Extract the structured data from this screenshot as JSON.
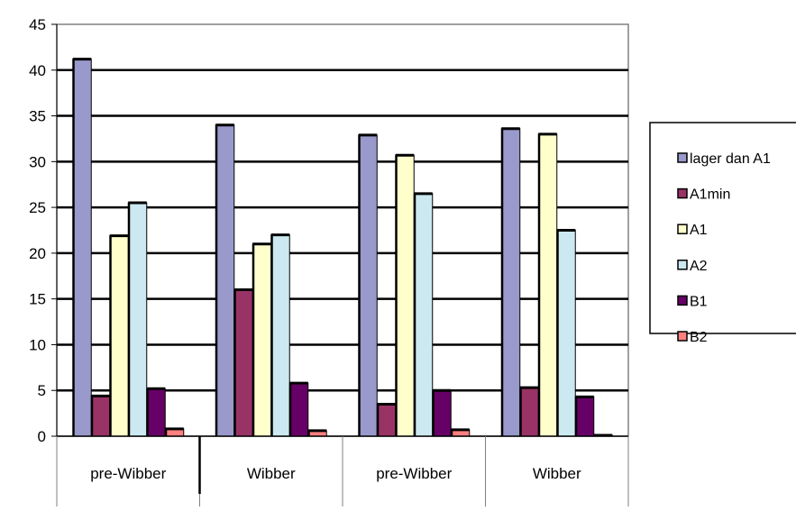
{
  "chart_data": {
    "type": "bar",
    "title": "",
    "xlabel": "",
    "ylabel": "",
    "ylim": [
      0,
      45
    ],
    "yticks": [
      0,
      5,
      10,
      15,
      20,
      25,
      30,
      35,
      40,
      45
    ],
    "grid": true,
    "legend_position": "right",
    "categories": [
      "pre-Wibber",
      "Wibber",
      "pre-Wibber",
      "Wibber"
    ],
    "series": [
      {
        "name": "lager dan A1",
        "color": "#9999cc",
        "values": [
          41.2,
          34.0,
          32.9,
          33.6
        ]
      },
      {
        "name": "A1min",
        "color": "#993366",
        "values": [
          4.4,
          16.0,
          3.5,
          5.3
        ]
      },
      {
        "name": "A1",
        "color": "#ffffcc",
        "values": [
          21.9,
          21.0,
          30.7,
          33.0
        ]
      },
      {
        "name": "A2",
        "color": "#cce8f0",
        "values": [
          25.5,
          22.0,
          26.5,
          22.5
        ]
      },
      {
        "name": "B1",
        "color": "#660066",
        "values": [
          5.2,
          5.8,
          5.0,
          4.3
        ]
      },
      {
        "name": "B2",
        "color": "#ff8080",
        "values": [
          0.8,
          0.6,
          0.7,
          0.1
        ]
      }
    ]
  }
}
